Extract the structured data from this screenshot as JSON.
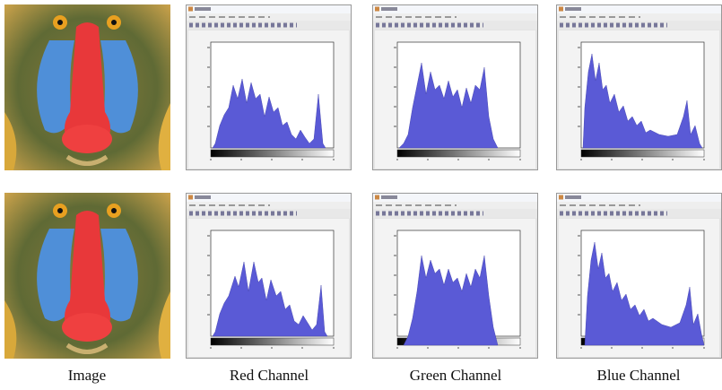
{
  "figure": {
    "captions": [
      "Image",
      "Red Channel",
      "Green Channel",
      "Blue Channel"
    ]
  }
}
